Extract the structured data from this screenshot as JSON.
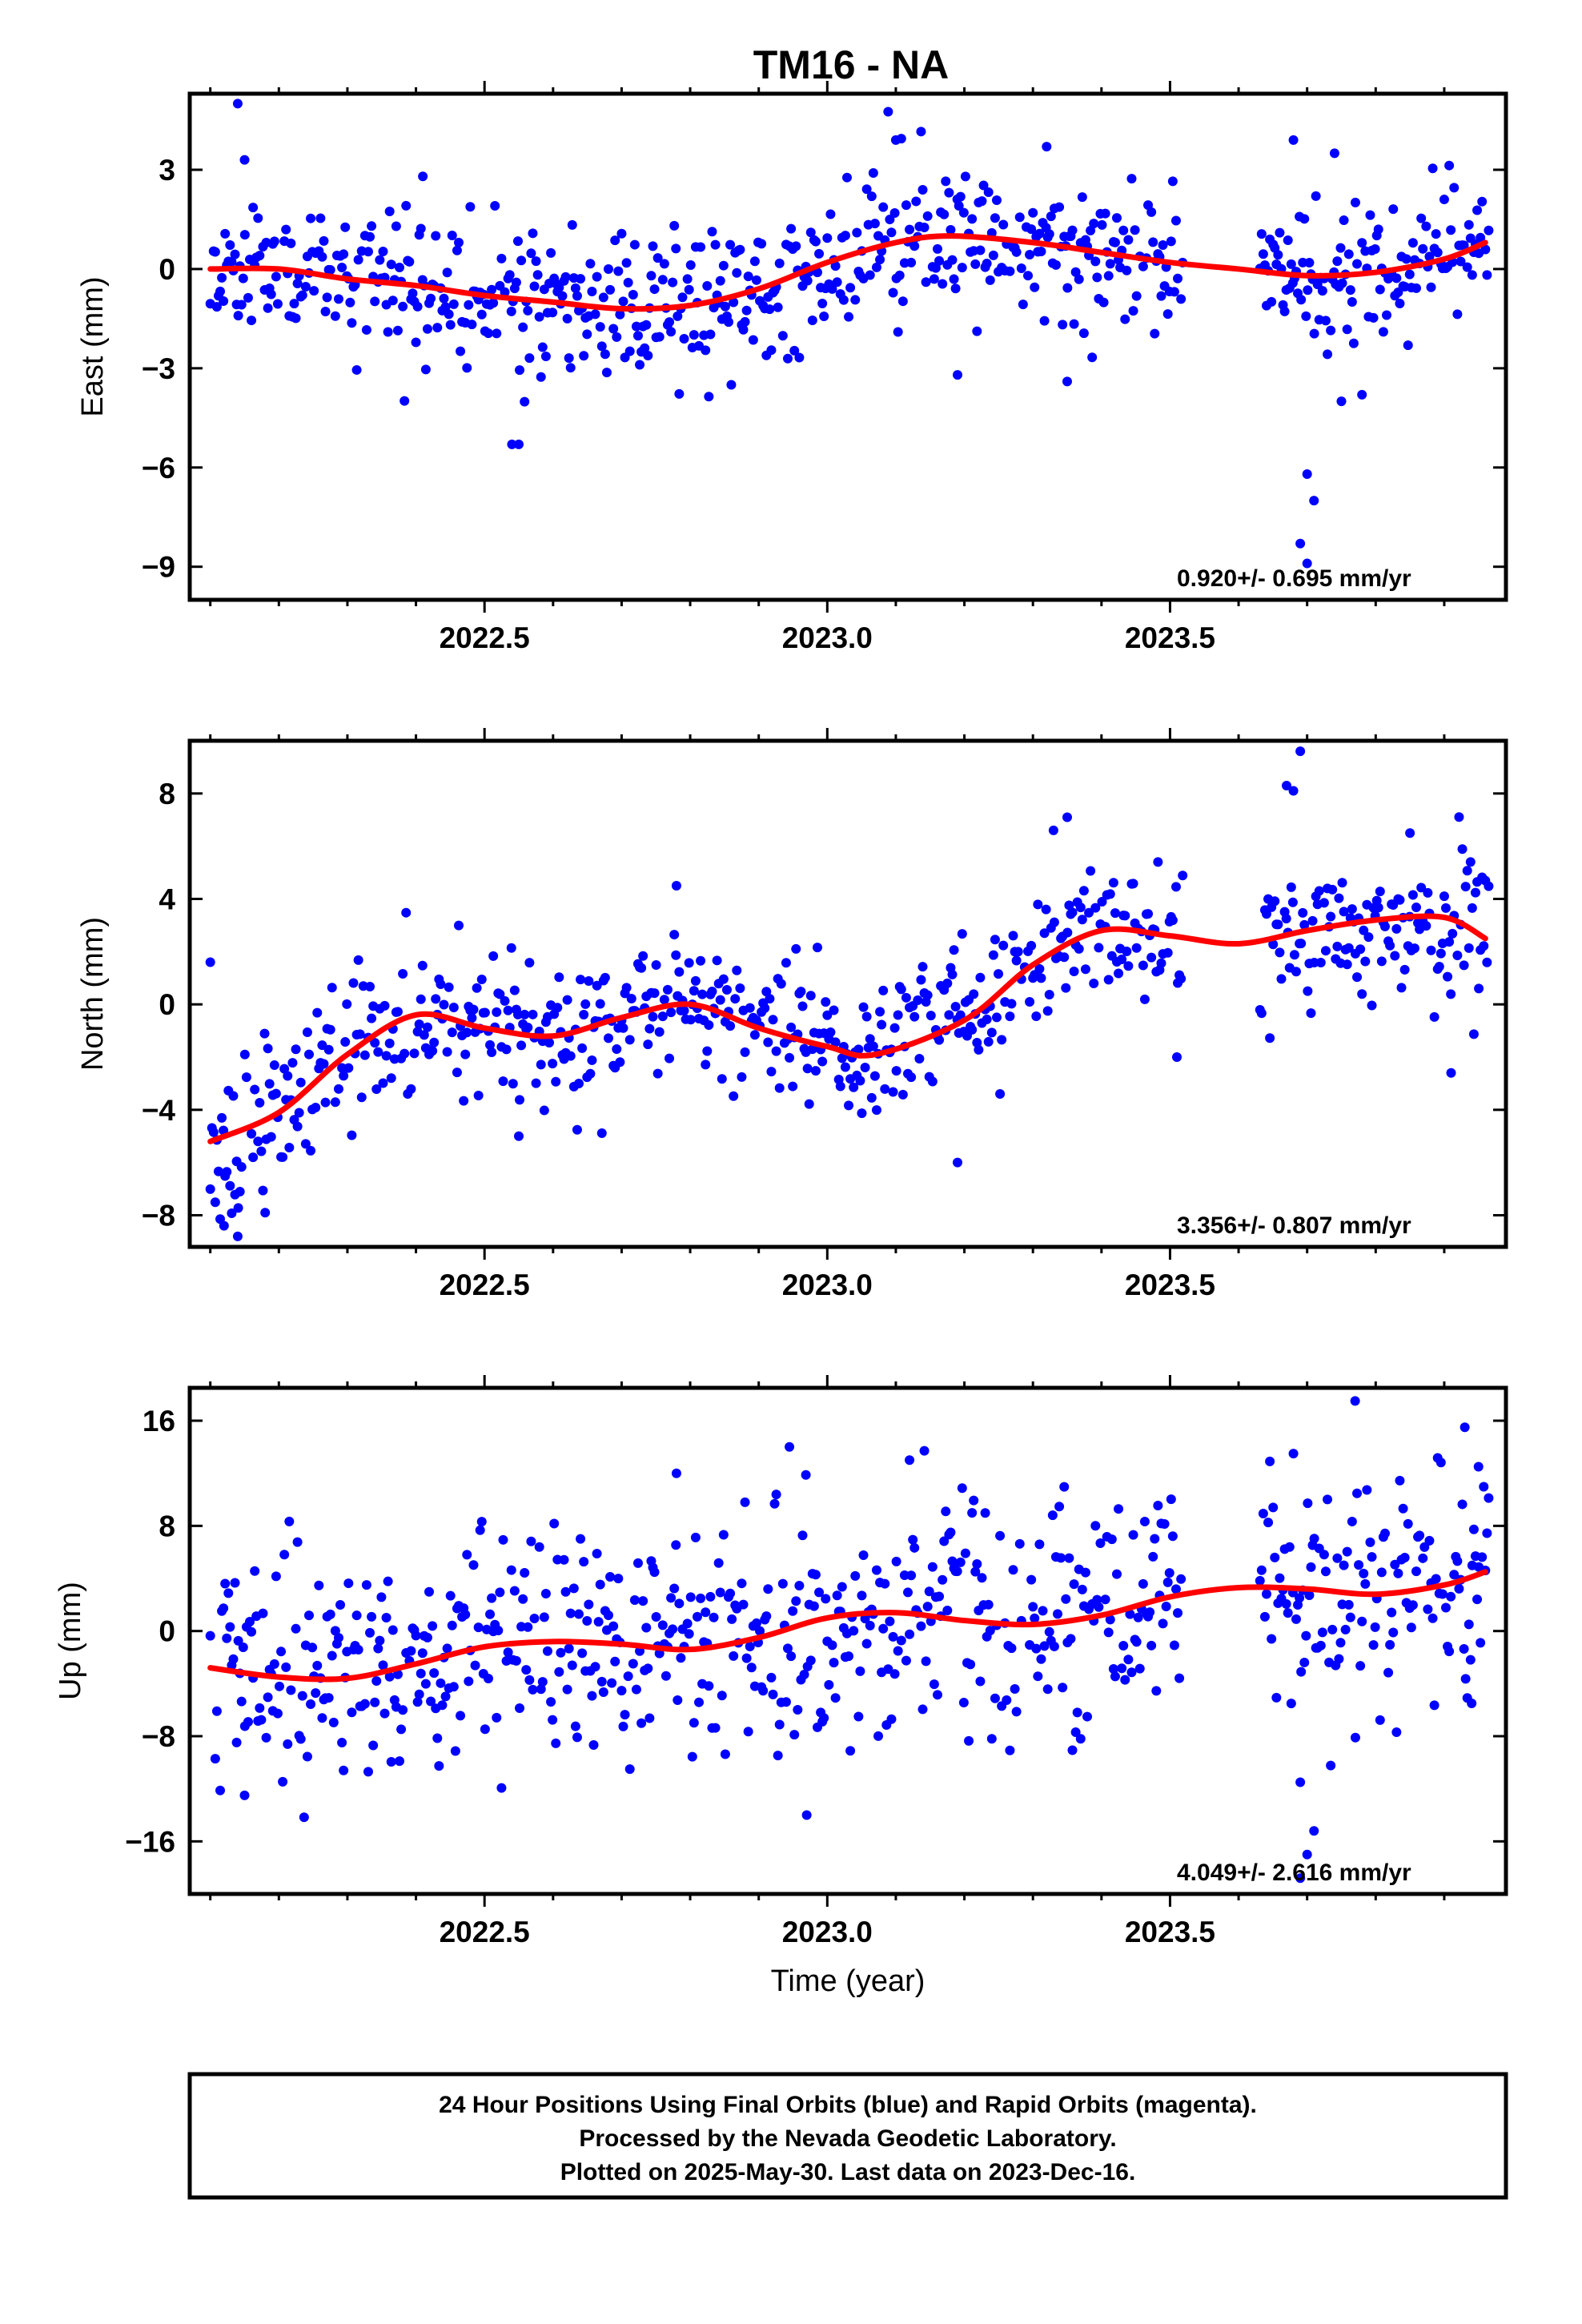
{
  "title": "TM16 - NA",
  "xlabel": "Time (year)",
  "footer": [
    "24 Hour Positions Using Final Orbits (blue) and Rapid Orbits (magenta).",
    "Processed by the Nevada Geodetic Laboratory.",
    "Plotted on 2025-May-30. Last data on 2023-Dec-16."
  ],
  "colors": {
    "points": "#0000ff",
    "fit": "#ff0000",
    "frame": "#000000"
  },
  "chart_data": [
    {
      "type": "scatter",
      "name": "east",
      "ylabel": "East (mm)",
      "xlim": [
        2022.07,
        2023.99
      ],
      "ylim": [
        -10.0,
        5.3
      ],
      "xticks": [
        "2022.5",
        "2023.0",
        "2023.5"
      ],
      "yticks": [
        "3",
        "0",
        "−3",
        "−6",
        "−9"
      ],
      "rate_label": "0.920+/- 0.695 mm/yr",
      "gap": [
        2023.52,
        2023.63
      ],
      "fit_x": [
        2022.1,
        2022.2,
        2022.3,
        2022.4,
        2022.5,
        2022.6,
        2022.7,
        2022.8,
        2022.9,
        2023.0,
        2023.1,
        2023.18,
        2023.3,
        2023.4,
        2023.5,
        2023.6,
        2023.7,
        2023.8,
        2023.9,
        2023.96
      ],
      "fit_y": [
        0.0,
        0.0,
        -0.3,
        -0.5,
        -0.8,
        -1.0,
        -1.2,
        -1.1,
        -0.6,
        0.2,
        0.8,
        1.0,
        0.8,
        0.5,
        0.2,
        0.0,
        -0.2,
        -0.1,
        0.3,
        0.8
      ],
      "trend": [
        [
          2022.1,
          0.0
        ],
        [
          2022.3,
          -0.3
        ],
        [
          2022.55,
          -0.9
        ],
        [
          2022.75,
          -1.2
        ],
        [
          2022.9,
          -0.6
        ],
        [
          2023.05,
          0.5
        ],
        [
          2023.18,
          1.0
        ],
        [
          2023.4,
          0.5
        ],
        [
          2023.6,
          0.0
        ],
        [
          2023.75,
          -0.2
        ],
        [
          2023.96,
          0.8
        ]
      ],
      "spread": 1.1,
      "outliers": [
        [
          2022.14,
          5.0
        ],
        [
          2022.55,
          -5.3
        ],
        [
          2022.15,
          3.3
        ],
        [
          2023.7,
          -6.2
        ],
        [
          2023.71,
          -7.0
        ],
        [
          2023.69,
          -8.3
        ],
        [
          2023.7,
          -8.9
        ],
        [
          2023.1,
          3.9
        ],
        [
          2023.68,
          3.9
        ],
        [
          2023.75,
          -4.0
        ],
        [
          2023.78,
          -3.8
        ],
        [
          2023.32,
          3.7
        ],
        [
          2022.41,
          2.8
        ],
        [
          2022.54,
          -5.3
        ],
        [
          2022.86,
          -3.5
        ],
        [
          2023.19,
          -3.2
        ],
        [
          2023.35,
          -3.4
        ],
        [
          2023.74,
          3.5
        ]
      ],
      "seed": 11
    },
    {
      "type": "scatter",
      "name": "north",
      "ylabel": "North (mm)",
      "xlim": [
        2022.07,
        2023.99
      ],
      "ylim": [
        -9.2,
        10.0
      ],
      "xticks": [
        "2022.5",
        "2023.0",
        "2023.5"
      ],
      "yticks": [
        "8",
        "4",
        "0",
        "−4",
        "−8"
      ],
      "rate_label": "3.356+/- 0.807 mm/yr",
      "gap": [
        2023.52,
        2023.63
      ],
      "fit_x": [
        2022.1,
        2022.2,
        2022.3,
        2022.4,
        2022.5,
        2022.6,
        2022.7,
        2022.8,
        2022.9,
        2023.0,
        2023.07,
        2023.2,
        2023.3,
        2023.4,
        2023.5,
        2023.6,
        2023.7,
        2023.8,
        2023.9,
        2023.96
      ],
      "fit_y": [
        -5.2,
        -4.1,
        -1.9,
        -0.4,
        -0.9,
        -1.2,
        -0.5,
        0.0,
        -0.9,
        -1.6,
        -1.9,
        -0.6,
        1.5,
        2.8,
        2.6,
        2.3,
        2.8,
        3.2,
        3.3,
        2.5
      ],
      "trend": [
        [
          2022.1,
          -5.2
        ],
        [
          2022.2,
          -4.1
        ],
        [
          2022.3,
          -1.9
        ],
        [
          2022.42,
          -0.4
        ],
        [
          2022.6,
          -1.2
        ],
        [
          2022.82,
          0.0
        ],
        [
          2023.07,
          -1.9
        ],
        [
          2023.2,
          -0.6
        ],
        [
          2023.3,
          1.5
        ],
        [
          2023.4,
          2.8
        ],
        [
          2023.6,
          2.3
        ],
        [
          2023.8,
          3.2
        ],
        [
          2023.96,
          2.5
        ]
      ],
      "spread": 1.4,
      "outliers": [
        [
          2022.1,
          1.6
        ],
        [
          2022.12,
          -8.4
        ],
        [
          2022.14,
          -8.8
        ],
        [
          2022.18,
          -7.9
        ],
        [
          2023.69,
          9.6
        ],
        [
          2023.67,
          8.3
        ],
        [
          2023.68,
          8.1
        ],
        [
          2023.35,
          7.1
        ],
        [
          2023.33,
          6.6
        ],
        [
          2023.19,
          -6.0
        ],
        [
          2022.55,
          -5.0
        ],
        [
          2023.85,
          6.5
        ],
        [
          2023.91,
          -2.6
        ],
        [
          2023.51,
          -2.0
        ],
        [
          2022.78,
          4.5
        ]
      ],
      "seed": 23
    },
    {
      "type": "scatter",
      "name": "up",
      "ylabel": "Up (mm)",
      "xlim": [
        2022.07,
        2023.99
      ],
      "ylim": [
        -20.0,
        18.5
      ],
      "xticks": [
        "2022.5",
        "2023.0",
        "2023.5"
      ],
      "yticks": [
        "16",
        "8",
        "0",
        "−8",
        "−16"
      ],
      "rate_label": "4.049+/- 2.616 mm/yr",
      "gap": [
        2023.52,
        2023.63
      ],
      "fit_x": [
        2022.1,
        2022.2,
        2022.3,
        2022.4,
        2022.5,
        2022.6,
        2022.7,
        2022.8,
        2022.9,
        2023.0,
        2023.1,
        2023.2,
        2023.3,
        2023.4,
        2023.5,
        2023.6,
        2023.7,
        2023.8,
        2023.9,
        2023.96
      ],
      "fit_y": [
        -2.8,
        -3.5,
        -3.6,
        -2.5,
        -1.2,
        -0.8,
        -1.0,
        -1.4,
        -0.5,
        1.0,
        1.4,
        0.8,
        0.5,
        1.2,
        2.6,
        3.3,
        3.2,
        2.8,
        3.5,
        4.5
      ],
      "trend": [
        [
          2022.1,
          -2.8
        ],
        [
          2022.2,
          -3.5
        ],
        [
          2022.3,
          -3.6
        ],
        [
          2022.5,
          -1.2
        ],
        [
          2022.8,
          -1.4
        ],
        [
          2023.0,
          1.0
        ],
        [
          2023.1,
          1.4
        ],
        [
          2023.3,
          0.5
        ],
        [
          2023.5,
          2.6
        ],
        [
          2023.6,
          3.3
        ],
        [
          2023.8,
          2.8
        ],
        [
          2023.96,
          4.5
        ]
      ],
      "spread": 4.5,
      "outliers": [
        [
          2022.15,
          -12.5
        ],
        [
          2023.77,
          17.5
        ],
        [
          2023.69,
          -18.8
        ],
        [
          2023.7,
          -17.0
        ],
        [
          2023.71,
          -15.2
        ],
        [
          2023.69,
          -11.5
        ],
        [
          2022.97,
          -14.0
        ],
        [
          2023.93,
          15.5
        ],
        [
          2023.95,
          12.5
        ],
        [
          2023.12,
          13.0
        ],
        [
          2022.78,
          12.0
        ],
        [
          2023.68,
          13.5
        ],
        [
          2023.94,
          -5.5
        ]
      ],
      "seed": 37
    }
  ]
}
